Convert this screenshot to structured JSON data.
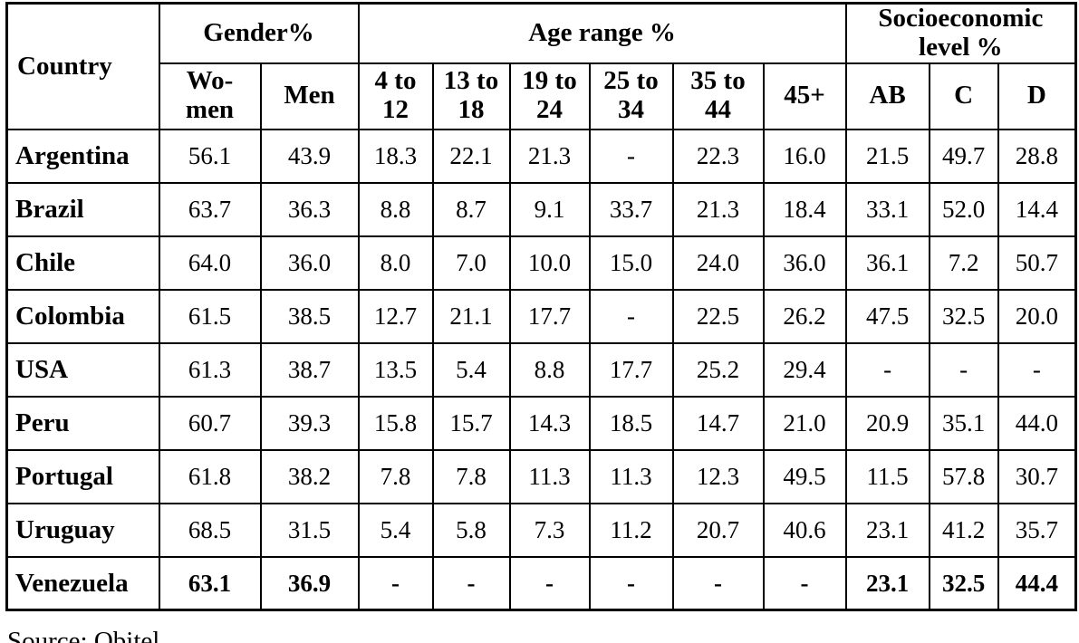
{
  "page": {
    "background_color": "#ffffff",
    "text_color": "#000000",
    "border_color": "#000000"
  },
  "table": {
    "corner_header": "Country",
    "groups": [
      {
        "label": "Gender%",
        "span": 2
      },
      {
        "label": "Age range %",
        "span": 6
      },
      {
        "label": "Socioeconomic\nlevel %",
        "span": 3
      }
    ],
    "subheaders": [
      "Wo-\nmen",
      "Men",
      "4 to\n12",
      "13 to\n18",
      "19 to\n24",
      "25 to\n34",
      "35 to\n44",
      "45+",
      "AB",
      "C",
      "D"
    ],
    "rows": [
      {
        "country": "Argentina",
        "bold": false,
        "values": [
          "56.1",
          "43.9",
          "18.3",
          "22.1",
          "21.3",
          "-",
          "22.3",
          "16.0",
          "21.5",
          "49.7",
          "28.8"
        ]
      },
      {
        "country": "Brazil",
        "bold": false,
        "values": [
          "63.7",
          "36.3",
          "8.8",
          "8.7",
          "9.1",
          "33.7",
          "21.3",
          "18.4",
          "33.1",
          "52.0",
          "14.4"
        ]
      },
      {
        "country": "Chile",
        "bold": false,
        "values": [
          "64.0",
          "36.0",
          "8.0",
          "7.0",
          "10.0",
          "15.0",
          "24.0",
          "36.0",
          "36.1",
          "7.2",
          "50.7"
        ]
      },
      {
        "country": "Colombia",
        "bold": false,
        "values": [
          "61.5",
          "38.5",
          "12.7",
          "21.1",
          "17.7",
          "-",
          "22.5",
          "26.2",
          "47.5",
          "32.5",
          "20.0"
        ]
      },
      {
        "country": "USA",
        "bold": false,
        "values": [
          "61.3",
          "38.7",
          "13.5",
          "5.4",
          "8.8",
          "17.7",
          "25.2",
          "29.4",
          "-",
          "-",
          "-"
        ]
      },
      {
        "country": "Peru",
        "bold": false,
        "values": [
          "60.7",
          "39.3",
          "15.8",
          "15.7",
          "14.3",
          "18.5",
          "14.7",
          "21.0",
          "20.9",
          "35.1",
          "44.0"
        ]
      },
      {
        "country": "Portugal",
        "bold": false,
        "values": [
          "61.8",
          "38.2",
          "7.8",
          "7.8",
          "11.3",
          "11.3",
          "12.3",
          "49.5",
          "11.5",
          "57.8",
          "30.7"
        ]
      },
      {
        "country": "Uruguay",
        "bold": false,
        "values": [
          "68.5",
          "31.5",
          "5.4",
          "5.8",
          "7.3",
          "11.2",
          "20.7",
          "40.6",
          "23.1",
          "41.2",
          "35.7"
        ]
      },
      {
        "country": "Venezuela",
        "bold": true,
        "values": [
          "63.1",
          "36.9",
          "-",
          "-",
          "-",
          "-",
          "-",
          "-",
          "23.1",
          "32.5",
          "44.4"
        ]
      }
    ]
  },
  "footer": {
    "source_label": "Source: Obitel"
  }
}
